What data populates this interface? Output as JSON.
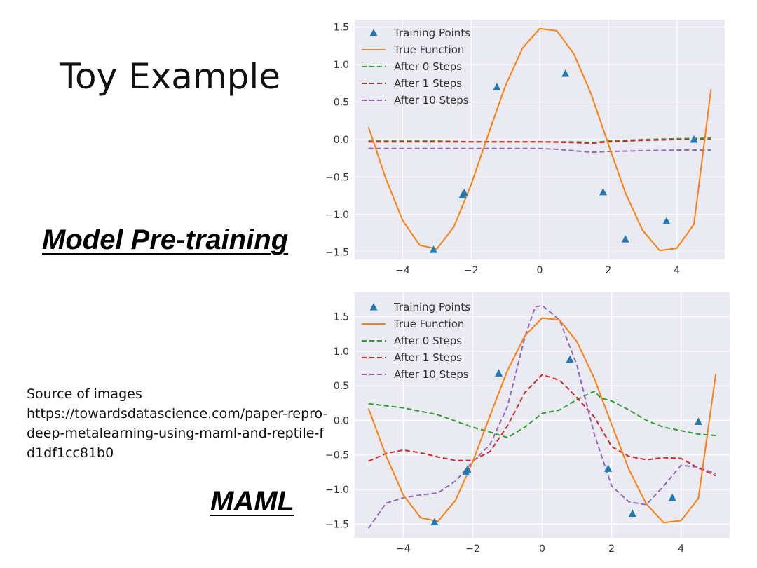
{
  "slide": {
    "title": "Toy Example",
    "label_pretraining": "Model Pre-training",
    "label_maml": "MAML",
    "source_heading": "Source of images",
    "source_url": "https://towardsdatascience.com/paper-repro-deep-metalearning-using-maml-and-reptile-fd1df1cc81b0"
  },
  "colors": {
    "training_points": "#1f77b4",
    "true_function": "#ff7f0e",
    "after_0": "#2ca02c",
    "after_1": "#d62728",
    "after_10": "#9467bd",
    "plot_background": "#eaeaf2",
    "grid": "#ffffff"
  },
  "chart_data": [
    {
      "type": "line",
      "grid": true,
      "legend_position": "top-left",
      "xlim": [
        -5.4,
        5.4
      ],
      "ylim": [
        -1.6,
        1.6
      ],
      "x_ticks": [
        "−4",
        "−2",
        "0",
        "2",
        "4"
      ],
      "x_tick_values": [
        -4,
        -2,
        0,
        2,
        4
      ],
      "y_ticks": [
        "1.5",
        "1.0",
        "0.5",
        "0.0",
        "−0.5",
        "−1.0",
        "−1.5"
      ],
      "y_tick_values": [
        1.5,
        1.0,
        0.5,
        0.0,
        -0.5,
        -1.0,
        -1.5
      ],
      "training_points": {
        "name": "Training Points",
        "x": [
          -3.1,
          -2.25,
          -2.2,
          -1.25,
          0.75,
          1.85,
          2.5,
          3.7,
          4.5
        ],
        "y": [
          -1.47,
          -0.74,
          -0.71,
          0.7,
          0.88,
          -0.7,
          -1.33,
          -1.09,
          0.0
        ]
      },
      "series": [
        {
          "name": "True Function",
          "style": "solid",
          "x": [
            -5,
            -4.5,
            -4,
            -3.5,
            -3,
            -2.5,
            -2,
            -1.5,
            -1,
            -0.5,
            0,
            0.5,
            1,
            1.5,
            2,
            2.5,
            3,
            3.5,
            4,
            4.5,
            5
          ],
          "y": [
            0.17,
            -0.51,
            -1.08,
            -1.41,
            -1.46,
            -1.16,
            -0.6,
            0.07,
            0.72,
            1.22,
            1.48,
            1.45,
            1.14,
            0.61,
            -0.06,
            -0.71,
            -1.21,
            -1.48,
            -1.45,
            -1.13,
            0.67
          ]
        },
        {
          "name": "After 0 Steps",
          "style": "dashed",
          "x": [
            -5,
            -4,
            -3,
            -2,
            -1,
            0,
            1,
            1.5,
            2,
            3,
            4,
            5
          ],
          "y": [
            -0.02,
            -0.02,
            -0.02,
            -0.03,
            -0.03,
            -0.03,
            -0.03,
            -0.04,
            -0.02,
            0.0,
            0.01,
            0.02
          ]
        },
        {
          "name": "After 1 Steps",
          "style": "dashed",
          "x": [
            -5,
            -4,
            -3,
            -2,
            -1,
            0,
            1,
            1.5,
            2,
            3,
            4,
            5
          ],
          "y": [
            -0.03,
            -0.03,
            -0.03,
            -0.03,
            -0.03,
            -0.03,
            -0.04,
            -0.05,
            -0.03,
            -0.01,
            0.0,
            0.0
          ]
        },
        {
          "name": "After 10 Steps",
          "style": "dashed",
          "x": [
            -5,
            -4,
            -3,
            -2,
            -1,
            0,
            0.5,
            1,
            1.5,
            2,
            3,
            4,
            5
          ],
          "y": [
            -0.12,
            -0.12,
            -0.12,
            -0.12,
            -0.12,
            -0.12,
            -0.13,
            -0.15,
            -0.17,
            -0.16,
            -0.15,
            -0.14,
            -0.14
          ]
        }
      ]
    },
    {
      "type": "line",
      "grid": true,
      "legend_position": "top-left",
      "xlim": [
        -5.4,
        5.4
      ],
      "ylim": [
        -1.7,
        1.85
      ],
      "x_ticks": [
        "−4",
        "−2",
        "0",
        "2",
        "4"
      ],
      "x_tick_values": [
        -4,
        -2,
        0,
        2,
        4
      ],
      "y_ticks": [
        "1.5",
        "1.0",
        "0.5",
        "0.0",
        "−0.5",
        "−1.0",
        "−1.5"
      ],
      "y_tick_values": [
        1.5,
        1.0,
        0.5,
        0.0,
        -0.5,
        -1.0,
        -1.5
      ],
      "training_points": {
        "name": "Training Points",
        "x": [
          -3.1,
          -2.2,
          -2.15,
          -1.25,
          0.8,
          1.9,
          2.6,
          3.75,
          4.5
        ],
        "y": [
          -1.47,
          -0.75,
          -0.71,
          0.68,
          0.88,
          -0.7,
          -1.35,
          -1.12,
          -0.02
        ]
      },
      "series": [
        {
          "name": "True Function",
          "style": "solid",
          "x": [
            -5,
            -4.5,
            -4,
            -3.5,
            -3,
            -2.5,
            -2,
            -1.5,
            -1,
            -0.5,
            0,
            0.5,
            1,
            1.5,
            2,
            2.5,
            3,
            3.5,
            4,
            4.5,
            5
          ],
          "y": [
            0.17,
            -0.51,
            -1.08,
            -1.41,
            -1.46,
            -1.16,
            -0.6,
            0.07,
            0.72,
            1.22,
            1.48,
            1.45,
            1.14,
            0.61,
            -0.06,
            -0.71,
            -1.21,
            -1.48,
            -1.45,
            -1.13,
            0.67
          ]
        },
        {
          "name": "After 0 Steps",
          "style": "dashed",
          "x": [
            -5,
            -4,
            -3,
            -2,
            -1.5,
            -1,
            -0.5,
            0,
            0.5,
            1,
            1.5,
            1.7,
            2,
            2.5,
            3,
            3.5,
            4,
            4.5,
            5
          ],
          "y": [
            0.24,
            0.18,
            0.08,
            -0.1,
            -0.17,
            -0.25,
            -0.1,
            0.1,
            0.15,
            0.3,
            0.42,
            0.32,
            0.28,
            0.15,
            0.0,
            -0.1,
            -0.15,
            -0.2,
            -0.22
          ]
        },
        {
          "name": "After 1 Steps",
          "style": "dashed",
          "x": [
            -5,
            -4.5,
            -4,
            -3.5,
            -3,
            -2.5,
            -2,
            -1.5,
            -1,
            -0.5,
            0,
            0.5,
            1,
            1.5,
            2,
            2.5,
            3,
            3.5,
            4,
            4.5,
            5
          ],
          "y": [
            -0.59,
            -0.48,
            -0.43,
            -0.47,
            -0.53,
            -0.58,
            -0.58,
            -0.45,
            -0.08,
            0.4,
            0.66,
            0.58,
            0.33,
            0.05,
            -0.38,
            -0.52,
            -0.57,
            -0.54,
            -0.55,
            -0.69,
            -0.8
          ]
        },
        {
          "name": "After 10 Steps",
          "style": "dashed",
          "x": [
            -5,
            -4.5,
            -4,
            -3.5,
            -3,
            -2.5,
            -2,
            -1.5,
            -1,
            -0.5,
            -0.2,
            0,
            0.5,
            1,
            1.5,
            2,
            2.5,
            3,
            3.5,
            4,
            4.5,
            5
          ],
          "y": [
            -1.56,
            -1.2,
            -1.12,
            -1.08,
            -1.05,
            -0.88,
            -0.6,
            -0.35,
            0.2,
            1.2,
            1.64,
            1.66,
            1.45,
            0.8,
            -0.2,
            -0.95,
            -1.18,
            -1.22,
            -0.95,
            -0.65,
            -0.68,
            -0.77
          ]
        }
      ]
    }
  ]
}
